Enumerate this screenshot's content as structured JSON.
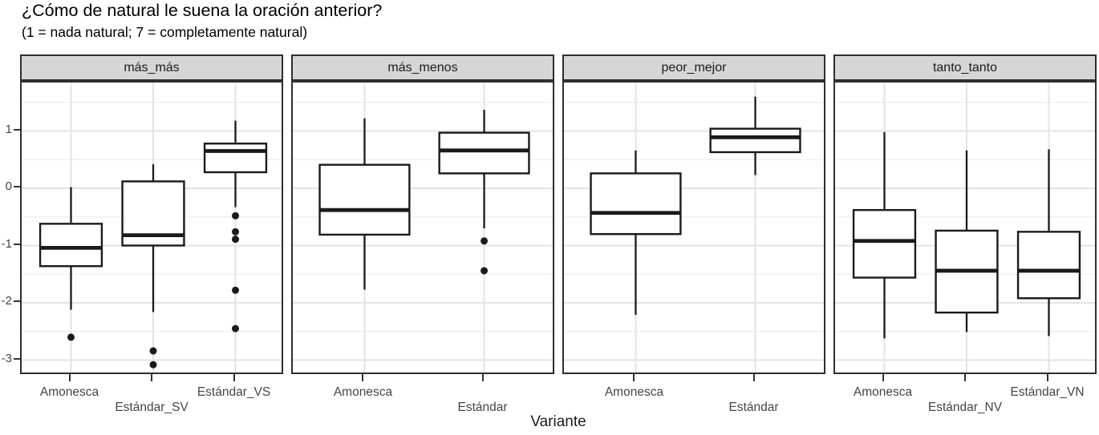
{
  "colors": {
    "strip_bg": "#d6d6d6",
    "panel_border": "#2e2e2e",
    "box_stroke": "#1a1a1a",
    "grid_major": "#e3e3e3",
    "grid_minor": "#f0f0f0",
    "tick_text": "#454545",
    "title_text": "#000000"
  },
  "chart_data": {
    "type": "boxplot",
    "title": "¿Cómo de natural le suena la oración anterior?",
    "subtitle": "(1 = nada natural; 7 = completamente natural)",
    "xlabel": "Variante",
    "ylabel": "",
    "ylim": [
      -3.29,
      1.85
    ],
    "grid": true,
    "y_major_ticks": [
      1,
      0,
      -1,
      -2,
      -3
    ],
    "y_minor_gridlines": [
      1.5,
      0.5,
      -0.5,
      -1.5,
      -2.5
    ],
    "facets": [
      {
        "label": "más_más",
        "boxes": [
          {
            "category": "Amonesca",
            "whisker_low": -2.12,
            "q1": -1.36,
            "median": -1.04,
            "q3": -0.62,
            "whisker_high": 0.02,
            "outliers": [
              -2.6
            ]
          },
          {
            "category": "Estándar_SV",
            "whisker_low": -2.16,
            "q1": -1.0,
            "median": -0.82,
            "q3": 0.12,
            "whisker_high": 0.42,
            "outliers": [
              -2.84,
              -3.08
            ]
          },
          {
            "category": "Estándar_VS",
            "whisker_low": -0.33,
            "q1": 0.28,
            "median": 0.65,
            "q3": 0.78,
            "whisker_high": 1.18,
            "outliers": [
              -0.48,
              -0.76,
              -0.89,
              -1.78,
              -2.45
            ]
          }
        ]
      },
      {
        "label": "más_menos",
        "boxes": [
          {
            "category": "Amonesca",
            "whisker_low": -1.77,
            "q1": -0.81,
            "median": -0.38,
            "q3": 0.41,
            "whisker_high": 1.22,
            "outliers": []
          },
          {
            "category": "Estándar",
            "whisker_low": -0.7,
            "q1": 0.26,
            "median": 0.66,
            "q3": 0.97,
            "whisker_high": 1.37,
            "outliers": [
              -0.92,
              -1.44
            ]
          }
        ]
      },
      {
        "label": "peor_mejor",
        "boxes": [
          {
            "category": "Amonesca",
            "whisker_low": -2.21,
            "q1": -0.8,
            "median": -0.43,
            "q3": 0.26,
            "whisker_high": 0.66,
            "outliers": []
          },
          {
            "category": "Estándar",
            "whisker_low": 0.23,
            "q1": 0.63,
            "median": 0.89,
            "q3": 1.04,
            "whisker_high": 1.6,
            "outliers": []
          }
        ]
      },
      {
        "label": "tanto_tanto",
        "boxes": [
          {
            "category": "Amonesca",
            "whisker_low": -2.62,
            "q1": -1.56,
            "median": -0.92,
            "q3": -0.38,
            "whisker_high": 0.98,
            "outliers": []
          },
          {
            "category": "Estándar_NV",
            "whisker_low": -2.51,
            "q1": -2.17,
            "median": -1.44,
            "q3": -0.74,
            "whisker_high": 0.66,
            "outliers": []
          },
          {
            "category": "Estándar_VN",
            "whisker_low": -2.58,
            "q1": -1.92,
            "median": -1.44,
            "q3": -0.76,
            "whisker_high": 0.68,
            "outliers": []
          }
        ]
      }
    ]
  }
}
